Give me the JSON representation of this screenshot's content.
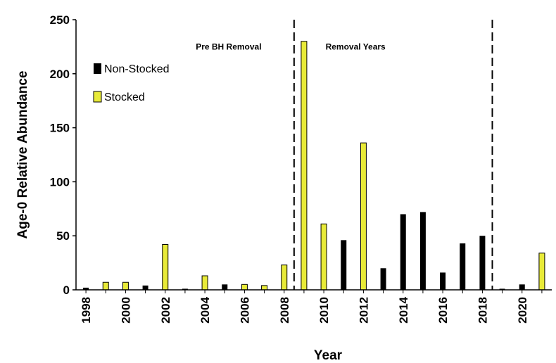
{
  "chart_data": {
    "type": "bar",
    "title": "",
    "xlabel": "Year",
    "ylabel": "Age-0 Relative Abundance",
    "ylim": [
      0,
      250
    ],
    "yticks": [
      0,
      50,
      100,
      150,
      200,
      250
    ],
    "xlim": [
      1997.5,
      2021.5
    ],
    "xticks": [
      1998,
      2000,
      2002,
      2004,
      2006,
      2008,
      2010,
      2012,
      2014,
      2016,
      2018,
      2020
    ],
    "grid": false,
    "legend_position": "top-left",
    "series": [
      {
        "name": "Non-Stocked",
        "color": "#000000",
        "points": [
          {
            "year": 1998,
            "value": 2
          },
          {
            "year": 2001,
            "value": 4
          },
          {
            "year": 2003,
            "value": 1
          },
          {
            "year": 2005,
            "value": 5
          },
          {
            "year": 2011,
            "value": 46
          },
          {
            "year": 2013,
            "value": 20
          },
          {
            "year": 2014,
            "value": 70
          },
          {
            "year": 2015,
            "value": 72
          },
          {
            "year": 2016,
            "value": 16
          },
          {
            "year": 2017,
            "value": 43
          },
          {
            "year": 2018,
            "value": 50
          },
          {
            "year": 2019,
            "value": 1
          },
          {
            "year": 2020,
            "value": 5
          }
        ]
      },
      {
        "name": "Stocked",
        "color": "#e8ea38",
        "points": [
          {
            "year": 1999,
            "value": 7
          },
          {
            "year": 2000,
            "value": 7
          },
          {
            "year": 2002,
            "value": 42
          },
          {
            "year": 2004,
            "value": 13
          },
          {
            "year": 2006,
            "value": 5
          },
          {
            "year": 2007,
            "value": 4
          },
          {
            "year": 2008,
            "value": 23
          },
          {
            "year": 2009,
            "value": 230
          },
          {
            "year": 2010,
            "value": 61
          },
          {
            "year": 2012,
            "value": 136
          },
          {
            "year": 2021,
            "value": 34
          }
        ]
      }
    ],
    "dividers": [
      2008.5,
      2018.5
    ],
    "annotations": [
      {
        "text": "Pre BH Removal",
        "x": 2005.2,
        "y": 225
      },
      {
        "text": "Removal Years",
        "x": 2011.6,
        "y": 225
      }
    ]
  }
}
